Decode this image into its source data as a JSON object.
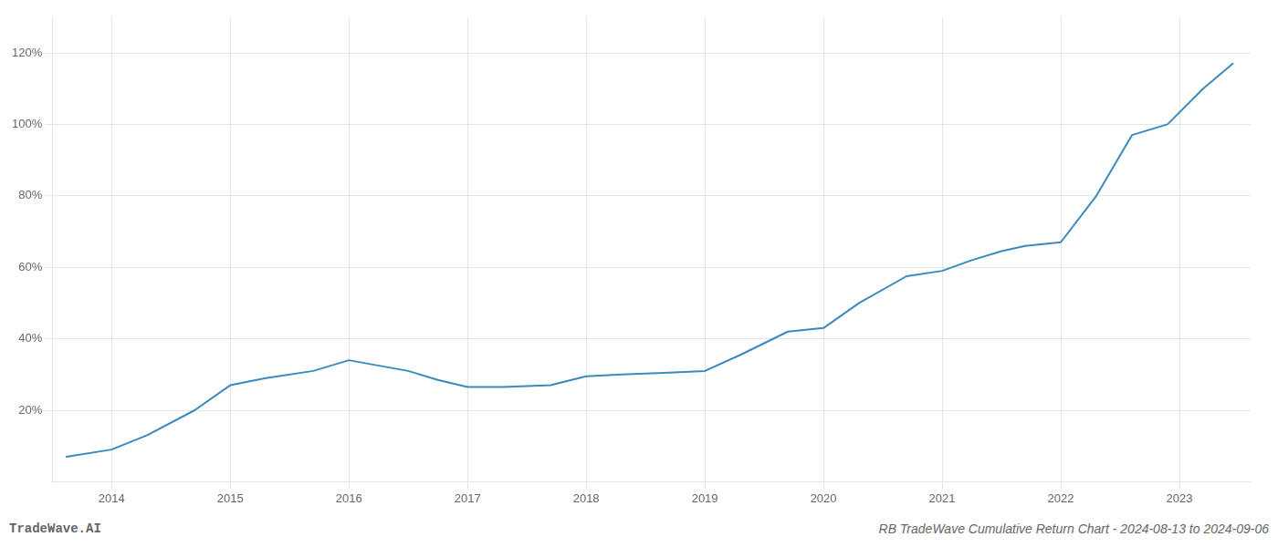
{
  "chart_data": {
    "type": "line",
    "x": [
      2013.62,
      2014.0,
      2014.3,
      2014.7,
      2015.0,
      2015.3,
      2015.7,
      2016.0,
      2016.5,
      2016.75,
      2017.0,
      2017.3,
      2017.7,
      2018.0,
      2018.3,
      2018.7,
      2019.0,
      2019.3,
      2019.7,
      2020.0,
      2020.3,
      2020.7,
      2021.0,
      2021.25,
      2021.5,
      2021.7,
      2022.0,
      2022.3,
      2022.6,
      2022.9,
      2023.2,
      2023.45
    ],
    "values": [
      0.07,
      0.09,
      0.13,
      0.2,
      0.27,
      0.29,
      0.31,
      0.34,
      0.31,
      0.285,
      0.265,
      0.265,
      0.27,
      0.295,
      0.3,
      0.305,
      0.31,
      0.355,
      0.42,
      0.43,
      0.5,
      0.575,
      0.59,
      0.62,
      0.645,
      0.66,
      0.67,
      0.8,
      0.97,
      1.0,
      1.1,
      1.17
    ],
    "color": "#3a8abf",
    "xlim": [
      2013.5,
      2023.6
    ],
    "xticks": [
      2014,
      2015,
      2016,
      2017,
      2018,
      2019,
      2020,
      2021,
      2022,
      2023
    ],
    "ylim": [
      0.0,
      1.3
    ],
    "yticks": [
      {
        "value": 0.2,
        "label": "20%"
      },
      {
        "value": 0.4,
        "label": "40%"
      },
      {
        "value": 0.6,
        "label": "60%"
      },
      {
        "value": 0.8,
        "label": "80%"
      },
      {
        "value": 1.0,
        "label": "100%"
      },
      {
        "value": 1.2,
        "label": "120%"
      }
    ],
    "grid": true,
    "annotations": [
      "TradeWave.AI",
      "RB TradeWave Cumulative Return Chart - 2024-08-13 to 2024-09-06"
    ]
  }
}
